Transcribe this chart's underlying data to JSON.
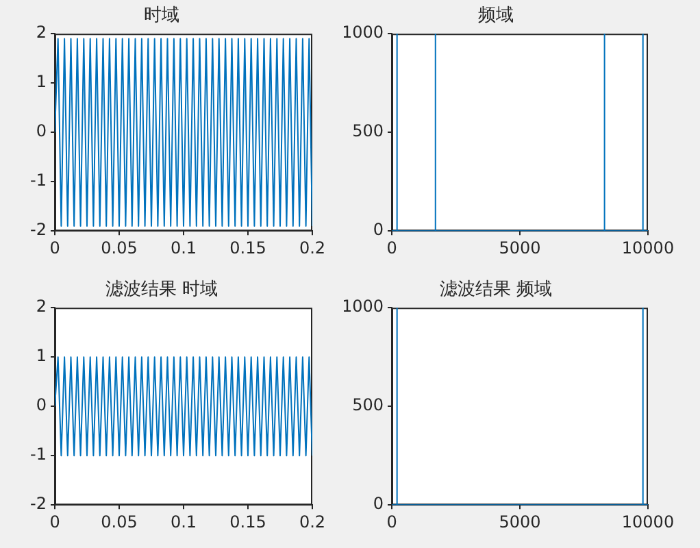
{
  "chart_data": [
    {
      "type": "line",
      "title": "时域",
      "x": [
        0,
        0.0025,
        0.005,
        0.0075,
        0.01,
        0.0125,
        0.015,
        0.0175,
        0.02,
        0.0225,
        0.025,
        0.0275,
        0.03,
        0.0325,
        0.035,
        0.0375,
        0.04,
        0.0425,
        0.045,
        0.0475,
        0.05,
        0.0525,
        0.055,
        0.0575,
        0.06,
        0.0625,
        0.065,
        0.0675,
        0.07,
        0.0725,
        0.075,
        0.0775,
        0.08,
        0.0825,
        0.085,
        0.0875,
        0.09,
        0.0925,
        0.095,
        0.0975,
        0.1,
        0.1025,
        0.105,
        0.1075,
        0.11,
        0.1125,
        0.115,
        0.1175,
        0.12,
        0.1225,
        0.125,
        0.1275,
        0.13,
        0.1325,
        0.135,
        0.1375,
        0.14,
        0.1425,
        0.145,
        0.1475,
        0.15,
        0.1525,
        0.155,
        0.1575,
        0.16,
        0.1625,
        0.165,
        0.1675,
        0.17,
        0.1725,
        0.175,
        0.1775,
        0.18,
        0.1825,
        0.185,
        0.1875,
        0.19,
        0.1925,
        0.195,
        0.1975,
        0.2
      ],
      "series": [
        {
          "color": "#0072bd",
          "values": [
            0,
            1.9,
            -1.9,
            1.9,
            -1.9,
            1.9,
            -1.9,
            1.9,
            -1.9,
            1.9,
            -1.9,
            1.9,
            -1.9,
            1.9,
            -1.9,
            1.9,
            -1.9,
            1.9,
            -1.9,
            1.9,
            -1.9,
            1.9,
            -1.9,
            1.9,
            -1.9,
            1.9,
            -1.9,
            1.9,
            -1.9,
            1.9,
            -1.9,
            1.9,
            -1.9,
            1.9,
            -1.9,
            1.9,
            -1.9,
            1.9,
            -1.9,
            1.9,
            -1.9,
            1.9,
            -1.9,
            1.9,
            -1.9,
            1.9,
            -1.9,
            1.9,
            -1.9,
            1.9,
            -1.9,
            1.9,
            -1.9,
            1.9,
            -1.9,
            1.9,
            -1.9,
            1.9,
            -1.9,
            1.9,
            -1.9,
            1.9,
            -1.9,
            1.9,
            -1.9,
            1.9,
            -1.9,
            1.9,
            -1.9,
            1.9,
            -1.9,
            1.9,
            -1.9,
            1.9,
            -1.9,
            1.9,
            -1.9,
            1.9,
            -1.9,
            1.9,
            -1.9
          ]
        }
      ],
      "xlim": [
        0,
        0.2
      ],
      "xticks": [
        0,
        0.05,
        0.1,
        0.15,
        0.2
      ],
      "ylim": [
        -2,
        2
      ],
      "yticks": [
        -2,
        -1,
        0,
        1,
        2
      ]
    },
    {
      "type": "line",
      "title": "频域",
      "x": [
        0,
        190,
        200,
        210,
        1690,
        1700,
        1710,
        8290,
        8300,
        8310,
        9790,
        9800,
        9810,
        10000
      ],
      "series": [
        {
          "color": "#0072bd",
          "values": [
            0,
            0,
            1000,
            0,
            0,
            1000,
            0,
            0,
            1000,
            0,
            0,
            1000,
            0,
            0
          ]
        }
      ],
      "xlim": [
        0,
        10000
      ],
      "xticks": [
        0,
        5000,
        10000
      ],
      "ylim": [
        0,
        1000
      ],
      "yticks": [
        0,
        500,
        1000
      ]
    },
    {
      "type": "line",
      "title": "滤波结果 时域",
      "x": [
        0,
        0.0025,
        0.005,
        0.0075,
        0.01,
        0.0125,
        0.015,
        0.0175,
        0.02,
        0.0225,
        0.025,
        0.0275,
        0.03,
        0.0325,
        0.035,
        0.0375,
        0.04,
        0.0425,
        0.045,
        0.0475,
        0.05,
        0.0525,
        0.055,
        0.0575,
        0.06,
        0.0625,
        0.065,
        0.0675,
        0.07,
        0.0725,
        0.075,
        0.0775,
        0.08,
        0.0825,
        0.085,
        0.0875,
        0.09,
        0.0925,
        0.095,
        0.0975,
        0.1,
        0.1025,
        0.105,
        0.1075,
        0.11,
        0.1125,
        0.115,
        0.1175,
        0.12,
        0.1225,
        0.125,
        0.1275,
        0.13,
        0.1325,
        0.135,
        0.1375,
        0.14,
        0.1425,
        0.145,
        0.1475,
        0.15,
        0.1525,
        0.155,
        0.1575,
        0.16,
        0.1625,
        0.165,
        0.1675,
        0.17,
        0.1725,
        0.175,
        0.1775,
        0.18,
        0.1825,
        0.185,
        0.1875,
        0.19,
        0.1925,
        0.195,
        0.1975,
        0.2
      ],
      "series": [
        {
          "color": "#0072bd",
          "values": [
            0,
            1,
            -1,
            1,
            -1,
            1,
            -1,
            1,
            -1,
            1,
            -1,
            1,
            -1,
            1,
            -1,
            1,
            -1,
            1,
            -1,
            1,
            -1,
            1,
            -1,
            1,
            -1,
            1,
            -1,
            1,
            -1,
            1,
            -1,
            1,
            -1,
            1,
            -1,
            1,
            -1,
            1,
            -1,
            1,
            -1,
            1,
            -1,
            1,
            -1,
            1,
            -1,
            1,
            -1,
            1,
            -1,
            1,
            -1,
            1,
            -1,
            1,
            -1,
            1,
            -1,
            1,
            -1,
            1,
            -1,
            1,
            -1,
            1,
            -1,
            1,
            -1,
            1,
            -1,
            1,
            -1,
            1,
            -1,
            1,
            -1,
            1,
            -1,
            1,
            -1
          ]
        }
      ],
      "xlim": [
        0,
        0.2
      ],
      "xticks": [
        0,
        0.05,
        0.1,
        0.15,
        0.2
      ],
      "ylim": [
        -2,
        2
      ],
      "yticks": [
        -2,
        -1,
        0,
        1,
        2
      ]
    },
    {
      "type": "line",
      "title": "滤波结果 频域",
      "x": [
        0,
        190,
        200,
        210,
        9790,
        9800,
        9810,
        10000
      ],
      "series": [
        {
          "color": "#0072bd",
          "values": [
            0,
            0,
            1000,
            0,
            0,
            1000,
            0,
            0
          ]
        }
      ],
      "xlim": [
        0,
        10000
      ],
      "xticks": [
        0,
        5000,
        10000
      ],
      "ylim": [
        0,
        1000
      ],
      "yticks": [
        0,
        500,
        1000
      ]
    }
  ]
}
